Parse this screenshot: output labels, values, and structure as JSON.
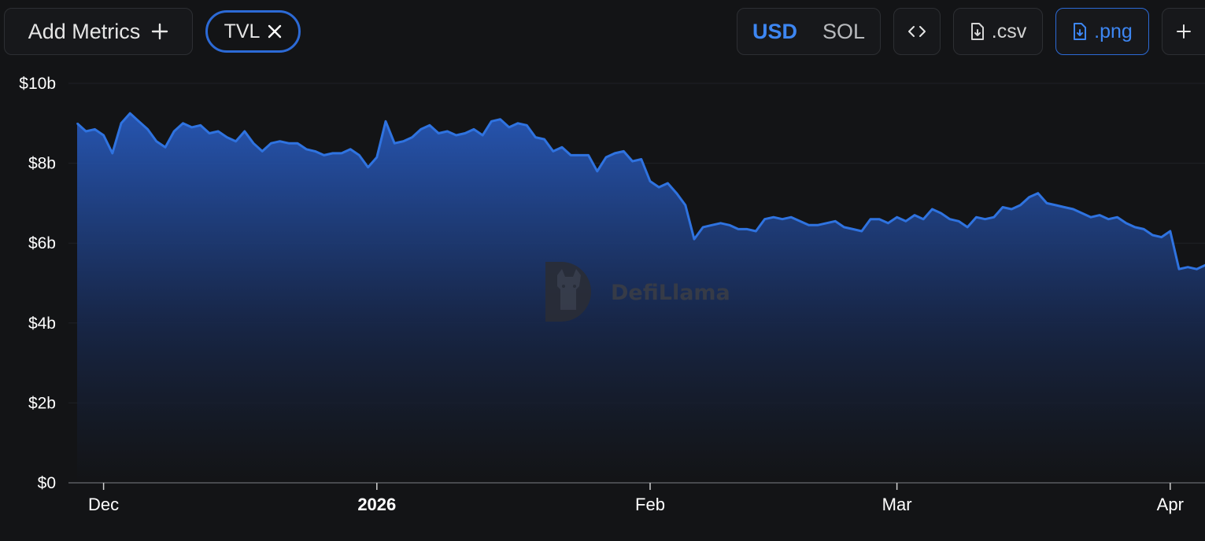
{
  "toolbar": {
    "add_metrics_label": "Add Metrics",
    "metric_chip_label": "TVL",
    "currency_usd": "USD",
    "currency_sol": "SOL",
    "csv_label": ".csv",
    "png_label": ".png",
    "active_currency": "USD"
  },
  "watermark": "DefiLlama",
  "colors": {
    "background": "#131416",
    "line": "#2f73e0",
    "accent": "#3d86f2"
  },
  "chart_data": {
    "type": "area",
    "title": "",
    "xlabel": "",
    "ylabel": "",
    "ylim": [
      0,
      10
    ],
    "y_unit": "billion USD",
    "ytick_labels": [
      "$0",
      "$2b",
      "$4b",
      "$6b",
      "$8b",
      "$10b"
    ],
    "ytick_values": [
      0,
      2,
      4,
      6,
      8,
      10
    ],
    "xtick_labels": [
      "Dec",
      "2026",
      "Feb",
      "Mar",
      "Apr"
    ],
    "xtick_dates": [
      "2025-12-01",
      "2026-01-01",
      "2026-02-01",
      "2026-03-01",
      "2026-04-01"
    ],
    "x_start": "2025-11-28",
    "grid": true,
    "series": [
      {
        "name": "TVL",
        "x": [
          "2025-11-28",
          "2025-11-29",
          "2025-11-30",
          "2025-12-01",
          "2025-12-02",
          "2025-12-03",
          "2025-12-04",
          "2025-12-05",
          "2025-12-06",
          "2025-12-07",
          "2025-12-08",
          "2025-12-09",
          "2025-12-10",
          "2025-12-11",
          "2025-12-12",
          "2025-12-13",
          "2025-12-14",
          "2025-12-15",
          "2025-12-16",
          "2025-12-17",
          "2025-12-18",
          "2025-12-19",
          "2025-12-20",
          "2025-12-21",
          "2025-12-22",
          "2025-12-23",
          "2025-12-24",
          "2025-12-25",
          "2025-12-26",
          "2025-12-27",
          "2025-12-28",
          "2025-12-29",
          "2025-12-30",
          "2025-12-31",
          "2026-01-01",
          "2026-01-02",
          "2026-01-03",
          "2026-01-04",
          "2026-01-05",
          "2026-01-06",
          "2026-01-07",
          "2026-01-08",
          "2026-01-09",
          "2026-01-10",
          "2026-01-11",
          "2026-01-12",
          "2026-01-13",
          "2026-01-14",
          "2026-01-15",
          "2026-01-16",
          "2026-01-17",
          "2026-01-18",
          "2026-01-19",
          "2026-01-20",
          "2026-01-21",
          "2026-01-22",
          "2026-01-23",
          "2026-01-24",
          "2026-01-25",
          "2026-01-26",
          "2026-01-27",
          "2026-01-28",
          "2026-01-29",
          "2026-01-30",
          "2026-01-31",
          "2026-02-01",
          "2026-02-02",
          "2026-02-03",
          "2026-02-04",
          "2026-02-05",
          "2026-02-06",
          "2026-02-07",
          "2026-02-08",
          "2026-02-09",
          "2026-02-10",
          "2026-02-11",
          "2026-02-12",
          "2026-02-13",
          "2026-02-14",
          "2026-02-15",
          "2026-02-16",
          "2026-02-17",
          "2026-02-18",
          "2026-02-19",
          "2026-02-20",
          "2026-02-21",
          "2026-02-22",
          "2026-02-23",
          "2026-02-24",
          "2026-02-25",
          "2026-02-26",
          "2026-02-27",
          "2026-02-28",
          "2026-03-01",
          "2026-03-02",
          "2026-03-03",
          "2026-03-04",
          "2026-03-05",
          "2026-03-06",
          "2026-03-07",
          "2026-03-08",
          "2026-03-09",
          "2026-03-10",
          "2026-03-11",
          "2026-03-12",
          "2026-03-13",
          "2026-03-14",
          "2026-03-15",
          "2026-03-16",
          "2026-03-17",
          "2026-03-18",
          "2026-03-19",
          "2026-03-20",
          "2026-03-21",
          "2026-03-22",
          "2026-03-23",
          "2026-03-24",
          "2026-03-25",
          "2026-03-26",
          "2026-03-27",
          "2026-03-28",
          "2026-03-29",
          "2026-03-30",
          "2026-03-31",
          "2026-04-01",
          "2026-04-02",
          "2026-04-03",
          "2026-04-04",
          "2026-04-05"
        ],
        "values": [
          9.0,
          8.8,
          8.85,
          8.7,
          8.25,
          9.0,
          9.25,
          9.05,
          8.85,
          8.55,
          8.4,
          8.8,
          9.0,
          8.9,
          8.95,
          8.75,
          8.8,
          8.65,
          8.55,
          8.8,
          8.5,
          8.3,
          8.5,
          8.55,
          8.5,
          8.5,
          8.35,
          8.3,
          8.2,
          8.25,
          8.25,
          8.35,
          8.2,
          7.9,
          8.15,
          9.05,
          8.5,
          8.55,
          8.65,
          8.85,
          8.95,
          8.75,
          8.8,
          8.7,
          8.75,
          8.85,
          8.7,
          9.05,
          9.1,
          8.9,
          9.0,
          8.95,
          8.65,
          8.6,
          8.3,
          8.4,
          8.2,
          8.2,
          8.2,
          7.8,
          8.15,
          8.25,
          8.3,
          8.05,
          8.1,
          7.55,
          7.4,
          7.5,
          7.25,
          6.95,
          6.1,
          6.4,
          6.45,
          6.5,
          6.45,
          6.35,
          6.35,
          6.3,
          6.6,
          6.65,
          6.6,
          6.65,
          6.55,
          6.45,
          6.45,
          6.5,
          6.55,
          6.4,
          6.35,
          6.3,
          6.6,
          6.6,
          6.5,
          6.65,
          6.55,
          6.7,
          6.6,
          6.85,
          6.75,
          6.6,
          6.55,
          6.4,
          6.65,
          6.6,
          6.65,
          6.9,
          6.85,
          6.95,
          7.15,
          7.25,
          7.0,
          6.95,
          6.9,
          6.85,
          6.75,
          6.65,
          6.7,
          6.6,
          6.65,
          6.5,
          6.4,
          6.35,
          6.2,
          6.15,
          6.3,
          5.35,
          5.4,
          5.35,
          5.45
        ]
      }
    ]
  }
}
